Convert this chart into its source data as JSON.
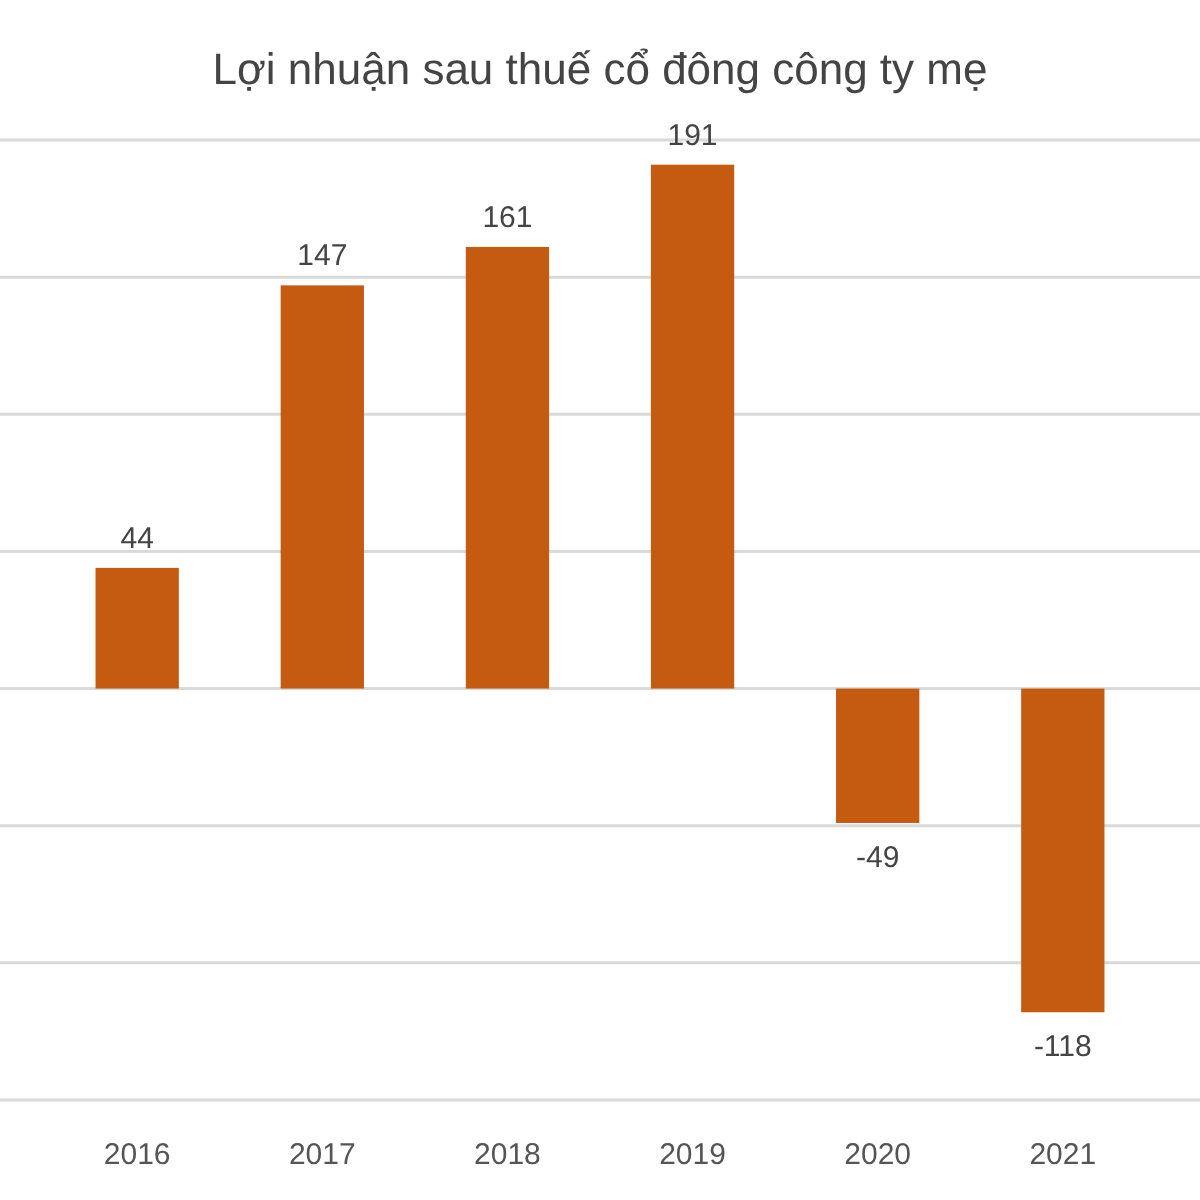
{
  "chart_data": {
    "type": "bar",
    "title": "Lợi nhuận sau thuế cổ đông công ty mẹ",
    "categories": [
      "2016",
      "2017",
      "2018",
      "2019",
      "2020",
      "2021"
    ],
    "values": [
      44,
      147,
      161,
      191,
      -49,
      -118
    ],
    "color": "#c55a11",
    "ylim": [
      -150,
      200
    ],
    "yticks": [
      {
        "value": -150,
        "label": null
      },
      {
        "value": -100,
        "label": null
      },
      {
        "value": -50,
        "label": null
      },
      {
        "value": 0,
        "label": null
      },
      {
        "value": 50,
        "label": null
      },
      {
        "value": 100,
        "label": null
      },
      {
        "value": 150,
        "label": null
      },
      {
        "value": 200,
        "label": null
      }
    ],
    "grid": "y",
    "tick_labels": "x",
    "data_labels": true
  }
}
